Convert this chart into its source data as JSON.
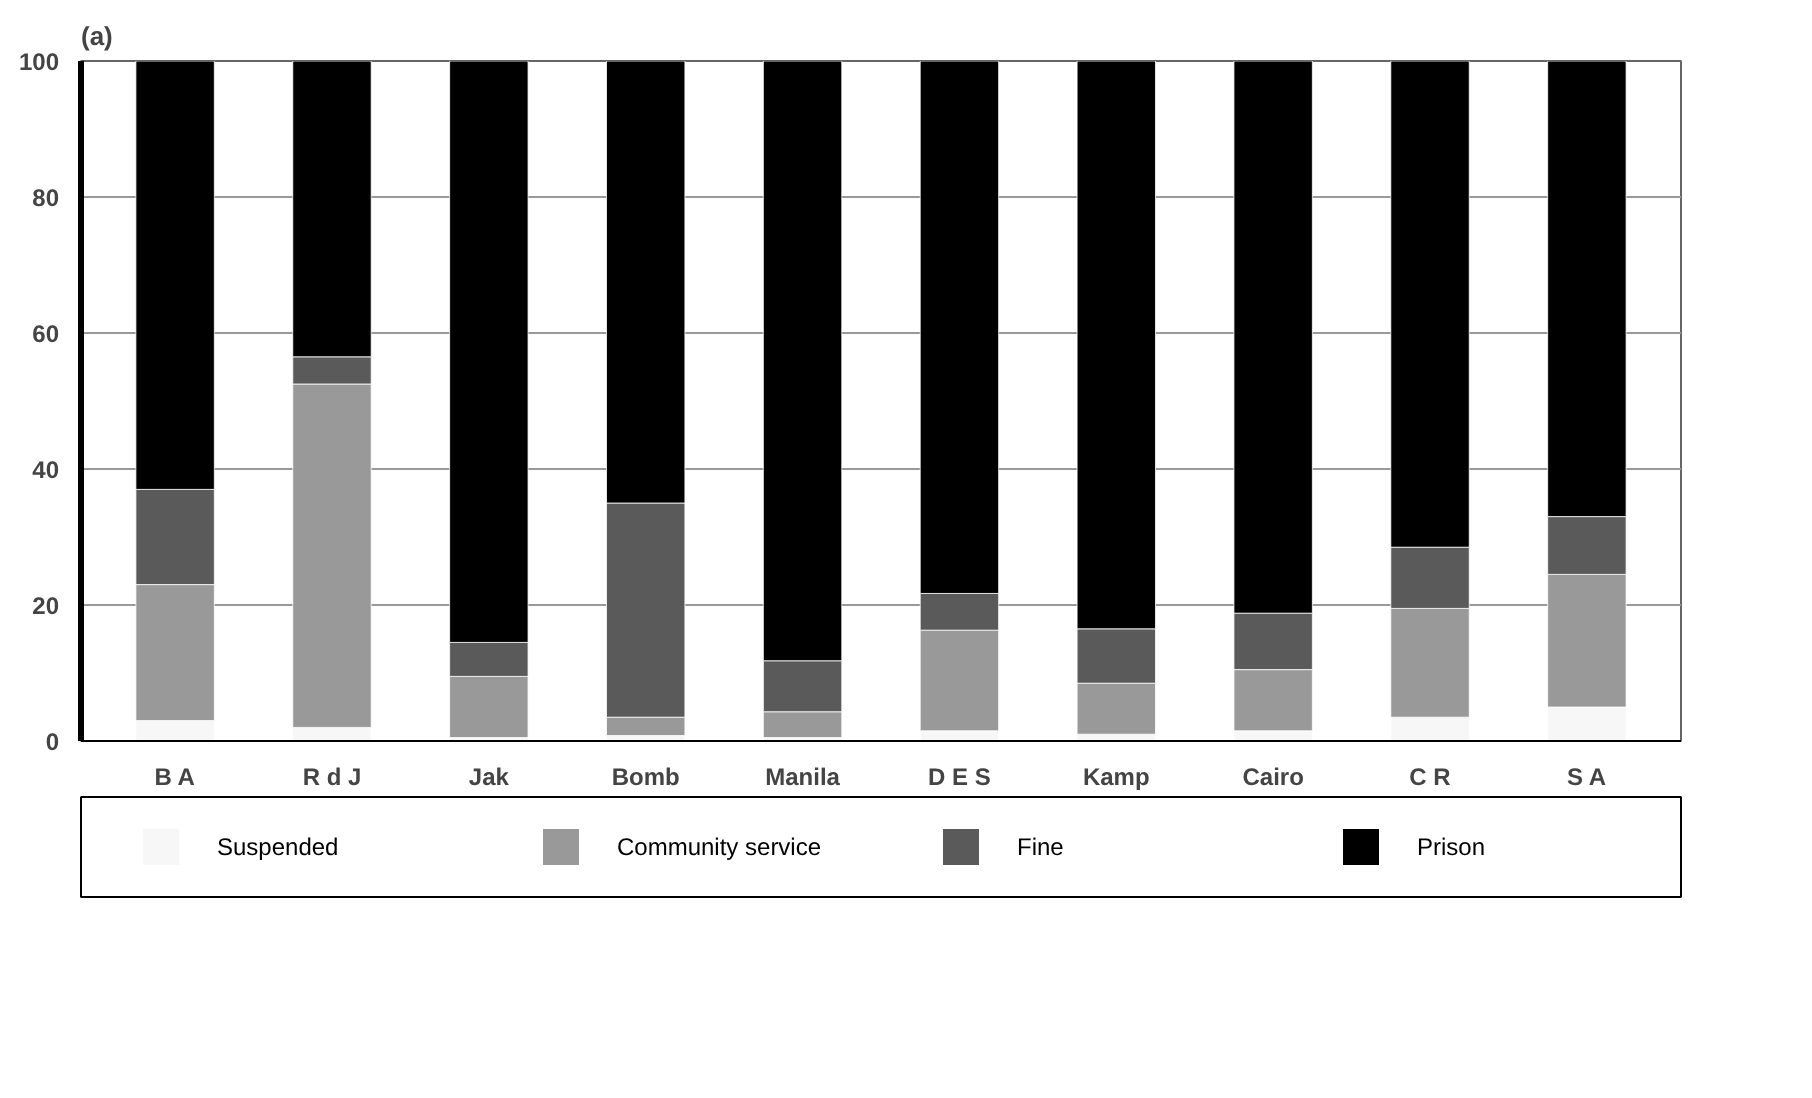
{
  "chart_data": {
    "type": "bar",
    "title": "(a)",
    "stacked": true,
    "categories": [
      "B A",
      "R d J",
      "Jak",
      "Bomb",
      "Manila",
      "D E S",
      "Kamp",
      "Cairo",
      "C R",
      "S A"
    ],
    "series": [
      {
        "name": "Suspended",
        "color": "#f7f7f7",
        "values": [
          3,
          2,
          0.5,
          0.8,
          0.5,
          1.5,
          1,
          1.5,
          3.5,
          5
        ]
      },
      {
        "name": "Community service",
        "color": "#999999",
        "values": [
          20,
          50.5,
          9,
          2.7,
          3.8,
          14.8,
          7.5,
          9,
          16,
          19.5
        ]
      },
      {
        "name": "Fine",
        "color": "#5a5a5a",
        "values": [
          14,
          4,
          5,
          31.5,
          7.5,
          5.4,
          8,
          8.3,
          9,
          8.5
        ]
      },
      {
        "name": "Prison",
        "color": "#000000",
        "values": [
          63,
          43.5,
          85.5,
          65,
          88.2,
          78.3,
          83.5,
          81.2,
          71.5,
          67
        ]
      }
    ],
    "ylim": [
      0,
      100
    ],
    "yticks": [
      0,
      20,
      40,
      60,
      80,
      100
    ],
    "grid": "y",
    "legend": "bottom"
  }
}
